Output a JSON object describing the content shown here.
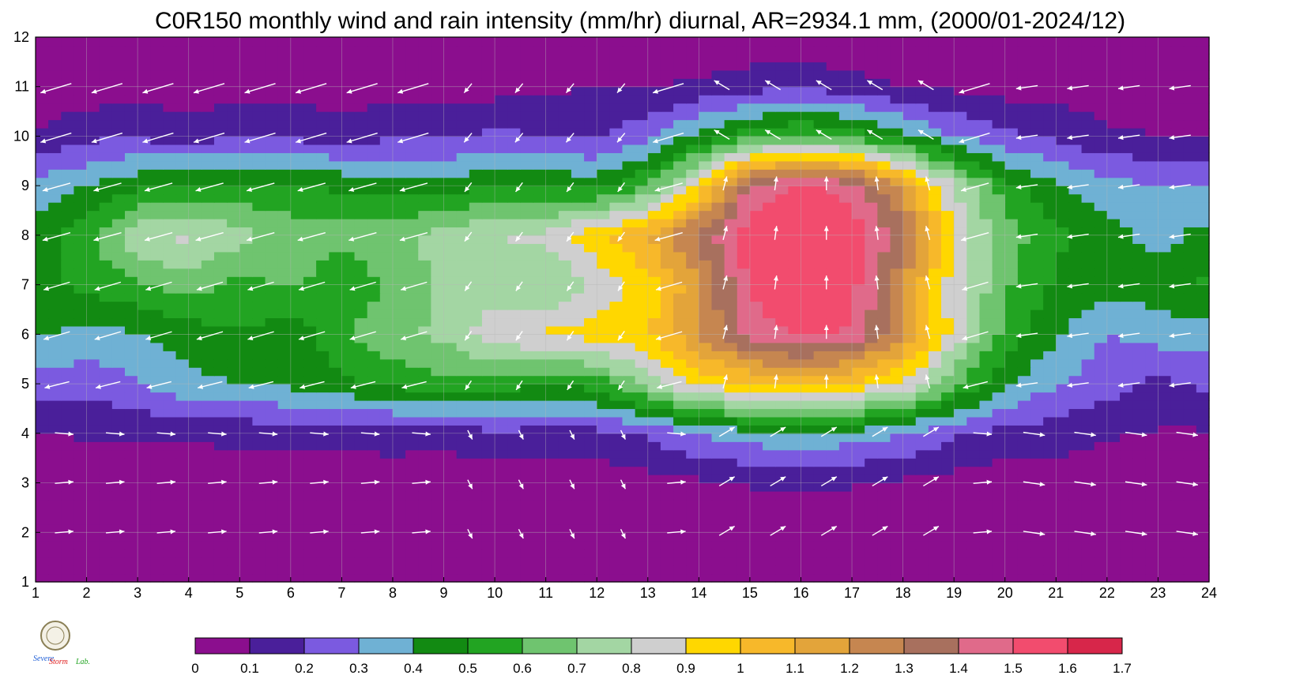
{
  "chart_data": {
    "type": "heatmap",
    "title": "C0R150 monthly wind and rain intensity (mm/hr) diurnal, AR=2934.1 mm, (2000/01-2024/12)",
    "xlabel": "",
    "ylabel": "",
    "xlim": [
      1,
      24
    ],
    "ylim": [
      1,
      12
    ],
    "x_ticks": [
      "1",
      "2",
      "3",
      "4",
      "5",
      "6",
      "7",
      "8",
      "9",
      "10",
      "11",
      "12",
      "13",
      "14",
      "15",
      "16",
      "17",
      "18",
      "19",
      "20",
      "21",
      "22",
      "23",
      "24"
    ],
    "y_ticks": [
      "1",
      "2",
      "3",
      "4",
      "5",
      "6",
      "7",
      "8",
      "9",
      "10",
      "11",
      "12"
    ],
    "grid": true,
    "colorbar": {
      "placement": "bottom",
      "levels": [
        0,
        0.1,
        0.2,
        0.3,
        0.4,
        0.5,
        0.6,
        0.7,
        0.8,
        0.9,
        1,
        1.1,
        1.2,
        1.3,
        1.4,
        1.5,
        1.6,
        1.7
      ],
      "labels": [
        "0",
        "0.1",
        "0.2",
        "0.3",
        "0.4",
        "0.5",
        "0.6",
        "0.7",
        "0.8",
        "0.9",
        "1",
        "1.1",
        "1.2",
        "1.3",
        "1.4",
        "1.5",
        "1.6",
        "1.7"
      ],
      "colors": [
        "#8b0e8e",
        "#4a1f9a",
        "#7b5ae0",
        "#6fb1d4",
        "#128a12",
        "#22a422",
        "#6fc46f",
        "#a3d6a3",
        "#cfcfcf",
        "#ffd700",
        "#f7b82a",
        "#e3a43a",
        "#c68650",
        "#a8705e",
        "#e06a8a",
        "#f24c6e",
        "#d7264a"
      ]
    },
    "x": [
      1,
      2,
      3,
      4,
      5,
      6,
      7,
      8,
      9,
      10,
      11,
      12,
      13,
      14,
      15,
      16,
      17,
      18,
      19,
      20,
      21,
      22,
      23,
      24
    ],
    "y": [
      1,
      2,
      3,
      4,
      5,
      6,
      7,
      8,
      9,
      10,
      11,
      12
    ],
    "z": [
      [
        0.02,
        0.02,
        0.02,
        0.02,
        0.02,
        0.02,
        0.02,
        0.02,
        0.02,
        0.02,
        0.02,
        0.02,
        0.02,
        0.02,
        0.02,
        0.02,
        0.02,
        0.02,
        0.02,
        0.02,
        0.02,
        0.02,
        0.02,
        0.02
      ],
      [
        0.03,
        0.03,
        0.03,
        0.03,
        0.03,
        0.03,
        0.03,
        0.03,
        0.03,
        0.03,
        0.03,
        0.03,
        0.03,
        0.03,
        0.03,
        0.03,
        0.03,
        0.03,
        0.03,
        0.03,
        0.03,
        0.03,
        0.03,
        0.03
      ],
      [
        0.04,
        0.04,
        0.04,
        0.04,
        0.04,
        0.04,
        0.04,
        0.04,
        0.04,
        0.04,
        0.04,
        0.05,
        0.06,
        0.08,
        0.11,
        0.12,
        0.11,
        0.08,
        0.06,
        0.05,
        0.04,
        0.04,
        0.04,
        0.04
      ],
      [
        0.09,
        0.11,
        0.12,
        0.11,
        0.13,
        0.14,
        0.12,
        0.15,
        0.13,
        0.18,
        0.16,
        0.16,
        0.22,
        0.3,
        0.36,
        0.38,
        0.36,
        0.3,
        0.22,
        0.16,
        0.15,
        0.11,
        0.09,
        0.09
      ],
      [
        0.26,
        0.24,
        0.29,
        0.38,
        0.4,
        0.42,
        0.48,
        0.52,
        0.58,
        0.55,
        0.5,
        0.54,
        0.75,
        0.92,
        1.0,
        1.02,
        0.98,
        0.88,
        0.62,
        0.42,
        0.3,
        0.24,
        0.18,
        0.22
      ],
      [
        0.42,
        0.36,
        0.4,
        0.44,
        0.5,
        0.44,
        0.58,
        0.68,
        0.72,
        0.86,
        0.92,
        0.94,
        0.98,
        1.2,
        1.45,
        1.52,
        1.48,
        1.22,
        0.86,
        0.56,
        0.42,
        0.3,
        0.34,
        0.36
      ],
      [
        0.48,
        0.52,
        0.58,
        0.66,
        0.56,
        0.62,
        0.52,
        0.62,
        0.72,
        0.76,
        0.68,
        0.82,
        0.96,
        1.18,
        1.52,
        1.58,
        1.54,
        1.22,
        0.84,
        0.62,
        0.48,
        0.44,
        0.46,
        0.52
      ],
      [
        0.44,
        0.58,
        0.78,
        0.82,
        0.74,
        0.66,
        0.64,
        0.68,
        0.74,
        0.8,
        0.82,
        0.98,
        1.1,
        1.34,
        1.56,
        1.6,
        1.56,
        1.34,
        0.88,
        0.66,
        0.52,
        0.44,
        0.36,
        0.44
      ],
      [
        0.34,
        0.4,
        0.48,
        0.52,
        0.52,
        0.5,
        0.48,
        0.46,
        0.44,
        0.5,
        0.48,
        0.46,
        0.6,
        0.92,
        1.42,
        1.52,
        1.46,
        1.18,
        0.8,
        0.54,
        0.42,
        0.34,
        0.3,
        0.3
      ],
      [
        0.1,
        0.18,
        0.18,
        0.16,
        0.18,
        0.18,
        0.16,
        0.18,
        0.18,
        0.22,
        0.2,
        0.18,
        0.28,
        0.42,
        0.56,
        0.62,
        0.56,
        0.44,
        0.3,
        0.22,
        0.18,
        0.12,
        0.1,
        0.1
      ],
      [
        0.04,
        0.04,
        0.05,
        0.05,
        0.05,
        0.05,
        0.05,
        0.05,
        0.06,
        0.06,
        0.08,
        0.1,
        0.09,
        0.12,
        0.16,
        0.18,
        0.14,
        0.1,
        0.08,
        0.06,
        0.05,
        0.04,
        0.04,
        0.04
      ],
      [
        0.02,
        0.02,
        0.02,
        0.02,
        0.02,
        0.02,
        0.02,
        0.02,
        0.02,
        0.02,
        0.02,
        0.02,
        0.02,
        0.02,
        0.02,
        0.02,
        0.02,
        0.02,
        0.02,
        0.02,
        0.02,
        0.02,
        0.02,
        0.02
      ]
    ],
    "wind_vectors": [
      {
        "y": 11.2,
        "u": [
          1,
          1,
          1,
          1,
          1,
          0.9,
          0.8,
          0.6,
          0.3,
          0.1,
          0.1,
          0.1,
          0.1,
          0,
          0,
          0,
          0,
          0,
          0.1,
          0.2,
          0.3,
          0.5,
          0.6,
          0.7
        ],
        "v": [
          -0.3,
          -0.3,
          -0.3,
          -0.3,
          -0.3,
          -0.3,
          -0.3,
          -0.3,
          -0.2,
          -0.1,
          0,
          0,
          0.1,
          0.3,
          0.4,
          0.5,
          0.5,
          0.4,
          0.3,
          0.2,
          0,
          -0.1,
          -0.2,
          -0.3
        ]
      }
    ]
  },
  "logo": {
    "name": "Severe Storm Lab",
    "text_severe": "Severe",
    "text_storm": "Storm",
    "text_lab": "Lab."
  }
}
